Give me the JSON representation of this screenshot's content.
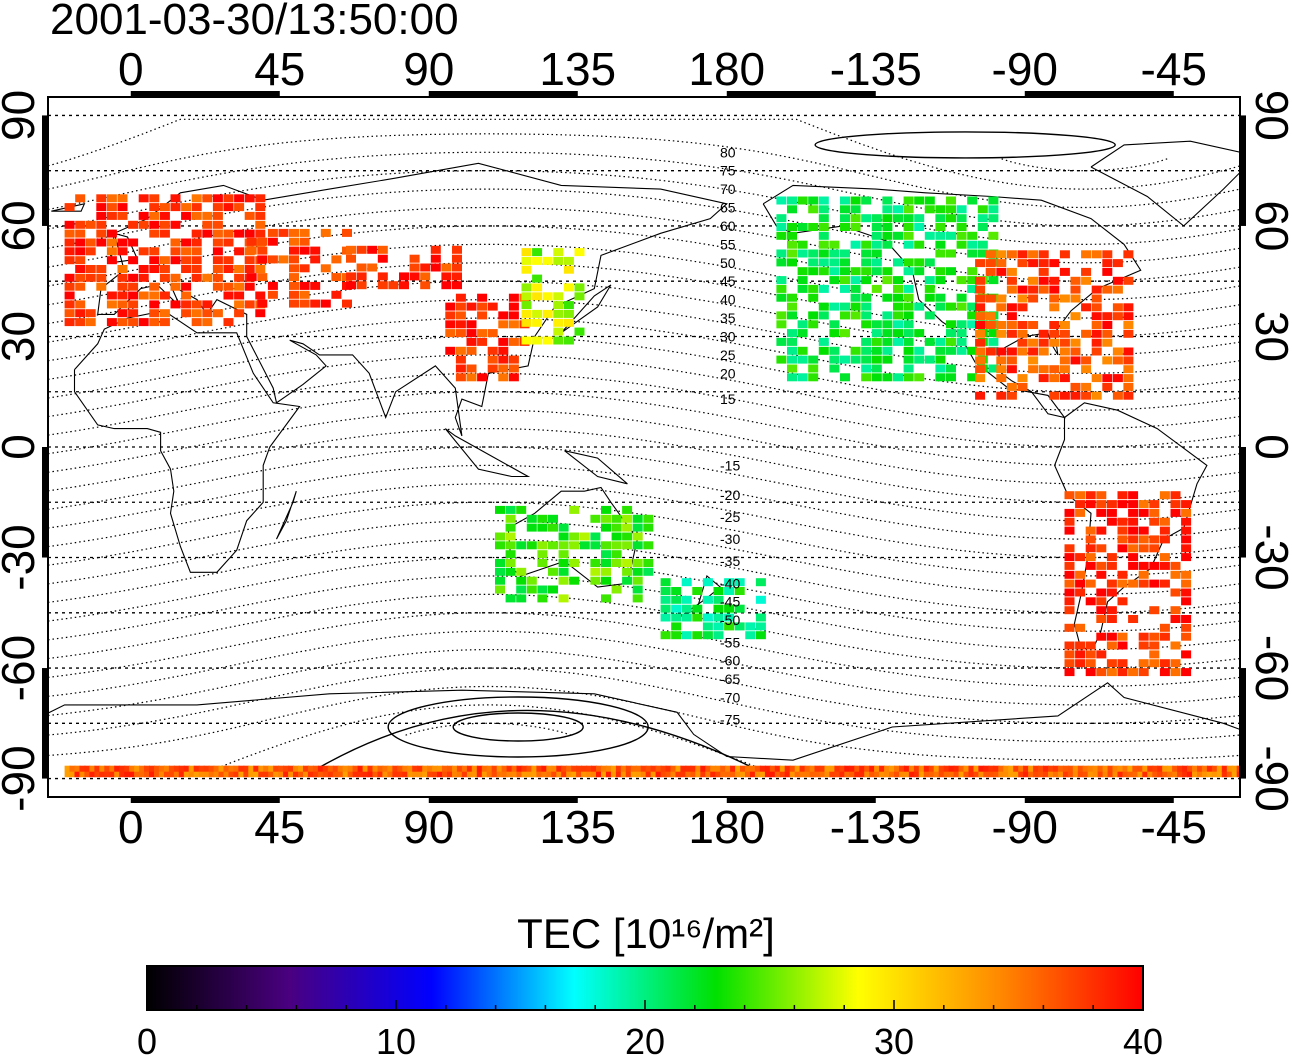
{
  "title": "2001-03-30/13:50:00",
  "map": {
    "lon_range": [
      -25,
      335
    ],
    "lat_range": [
      -95,
      95
    ],
    "lon_ticks": [
      {
        "value": 0,
        "label": "0"
      },
      {
        "value": 45,
        "label": "45"
      },
      {
        "value": 90,
        "label": "90"
      },
      {
        "value": 135,
        "label": "135"
      },
      {
        "value": 180,
        "label": "180"
      },
      {
        "value": 225,
        "label": "-135"
      },
      {
        "value": 270,
        "label": "-90"
      },
      {
        "value": 315,
        "label": "-45"
      }
    ],
    "lat_ticks": [
      {
        "value": 90,
        "label": "90"
      },
      {
        "value": 60,
        "label": "60"
      },
      {
        "value": 30,
        "label": "30"
      },
      {
        "value": 0,
        "label": "0"
      },
      {
        "value": -30,
        "label": "-30"
      },
      {
        "value": -60,
        "label": "-60"
      },
      {
        "value": -90,
        "label": "-90"
      }
    ],
    "grid": true,
    "contour_labels": [
      {
        "value": "80",
        "lat": 80
      },
      {
        "value": "75",
        "lat": 75
      },
      {
        "value": "70",
        "lat": 70
      },
      {
        "value": "65",
        "lat": 65
      },
      {
        "value": "60",
        "lat": 60
      },
      {
        "value": "55",
        "lat": 55
      },
      {
        "value": "50",
        "lat": 50
      },
      {
        "value": "45",
        "lat": 45
      },
      {
        "value": "40",
        "lat": 40
      },
      {
        "value": "35",
        "lat": 35
      },
      {
        "value": "30",
        "lat": 30
      },
      {
        "value": "25",
        "lat": 25
      },
      {
        "value": "20",
        "lat": 20
      },
      {
        "value": "15",
        "lat": 13
      },
      {
        "value": "-15",
        "lat": -5
      },
      {
        "value": "-20",
        "lat": -13
      },
      {
        "value": "-25",
        "lat": -19
      },
      {
        "value": "-30",
        "lat": -25
      },
      {
        "value": "-35",
        "lat": -31
      },
      {
        "value": "-40",
        "lat": -37
      },
      {
        "value": "-45",
        "lat": -42
      },
      {
        "value": "-50",
        "lat": -47
      },
      {
        "value": "-55",
        "lat": -53
      },
      {
        "value": "-60",
        "lat": -58
      },
      {
        "value": "-65",
        "lat": -63
      },
      {
        "value": "-70",
        "lat": -68
      },
      {
        "value": "-75",
        "lat": -74
      }
    ]
  },
  "colorbar": {
    "title": "TEC  [10¹⁶/m²]",
    "min": 0,
    "max": 40,
    "ticks": [
      "0",
      "10",
      "20",
      "30",
      "40"
    ],
    "stops": [
      "#000000",
      "#4a0080",
      "#0000ff",
      "#00ffff",
      "#00e000",
      "#ffff00",
      "#ff8800",
      "#ff0000"
    ]
  },
  "chart_data": {
    "type": "heatmap",
    "title": "2001-03-30/13:50:00",
    "variable": "TEC  [10¹⁶/m²]",
    "value_range": [
      0,
      40
    ],
    "regions": [
      {
        "lon": [
          -20,
          40
        ],
        "lat": [
          35,
          70
        ],
        "tec": 38
      },
      {
        "lon": [
          35,
          65
        ],
        "lat": [
          40,
          60
        ],
        "tec": 38
      },
      {
        "lon": [
          65,
          100
        ],
        "lat": [
          45,
          56
        ],
        "tec": 38
      },
      {
        "lon": [
          95,
          118
        ],
        "lat": [
          20,
          42
        ],
        "tec": 38
      },
      {
        "lon": [
          118,
          135
        ],
        "lat": [
          30,
          55
        ],
        "tec": 27
      },
      {
        "lon": [
          195,
          260
        ],
        "lat": [
          20,
          70
        ],
        "tec": 22
      },
      {
        "lon": [
          255,
          300
        ],
        "lat": [
          15,
          55
        ],
        "tec": 37
      },
      {
        "lon": [
          282,
          318
        ],
        "lat": [
          -60,
          -10
        ],
        "tec": 38
      },
      {
        "lon": [
          110,
          155
        ],
        "lat": [
          -40,
          -15
        ],
        "tec": 24
      },
      {
        "lon": [
          160,
          190
        ],
        "lat": [
          -50,
          -35
        ],
        "tec": 21
      },
      {
        "lon": [
          -20,
          340
        ],
        "lat": [
          -88,
          -86
        ],
        "tec": 36
      }
    ]
  }
}
